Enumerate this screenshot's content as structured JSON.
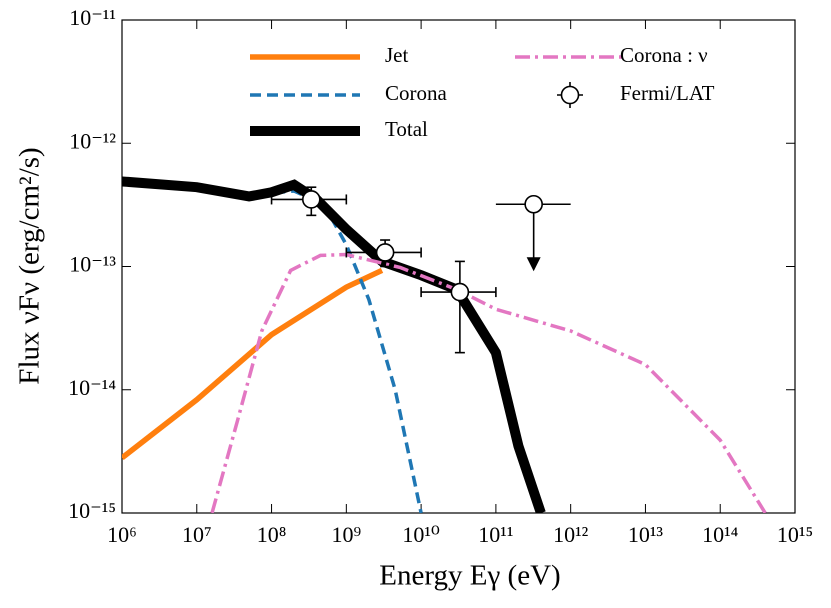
{
  "chart_data": {
    "type": "line",
    "xlabel": "Energy Eγ (eV)",
    "ylabel": "Flux νFν (erg/cm²/s)",
    "xscale": "log",
    "yscale": "log",
    "xlim": [
      1000000,
      1000000000000000
    ],
    "ylim": [
      1e-15,
      1e-11
    ],
    "xticks": [
      {
        "value": 1000000,
        "label": "10⁶"
      },
      {
        "value": 10000000,
        "label": "10⁷"
      },
      {
        "value": 100000000,
        "label": "10⁸"
      },
      {
        "value": 1000000000,
        "label": "10⁹"
      },
      {
        "value": 10000000000,
        "label": "10¹⁰"
      },
      {
        "value": 100000000000,
        "label": "10¹¹"
      },
      {
        "value": 1000000000000,
        "label": "10¹²"
      },
      {
        "value": 10000000000000,
        "label": "10¹³"
      },
      {
        "value": 100000000000000,
        "label": "10¹⁴"
      },
      {
        "value": 1000000000000000,
        "label": "10¹⁵"
      }
    ],
    "yticks": [
      {
        "value": 1e-15,
        "label": "10⁻¹⁵"
      },
      {
        "value": 1e-14,
        "label": "10⁻¹⁴"
      },
      {
        "value": 1e-13,
        "label": "10⁻¹³"
      },
      {
        "value": 1e-12,
        "label": "10⁻¹²"
      },
      {
        "value": 1e-11,
        "label": "10⁻¹¹"
      }
    ],
    "series": [
      {
        "name": "Jet",
        "color": "#ff7f0e",
        "style": "solid",
        "x": [
          1000000,
          10000000,
          100000000,
          1000000000,
          3000000000
        ],
        "values": [
          2.8e-15,
          8.3e-15,
          2.8e-14,
          6.8e-14,
          9.3e-14
        ]
      },
      {
        "name": "Corona",
        "color": "#1f77b4",
        "style": "dashed",
        "x": [
          1000000,
          10000000,
          50000000,
          200000000,
          500000000,
          1000000000,
          2000000000,
          4500000000,
          10000000000
        ],
        "values": [
          4.9e-13,
          4.2e-13,
          3.8e-13,
          4.1e-13,
          3.2e-13,
          1.5e-13,
          5.4e-14,
          1e-14,
          1e-15
        ]
      },
      {
        "name": "Total",
        "color": "#000000",
        "style": "solid",
        "x": [
          1000000,
          10000000,
          50000000,
          100000000,
          200000000,
          400000000,
          1000000000,
          3000000000,
          10000000000,
          30000000000,
          100000000000,
          200000000000,
          400000000000
        ],
        "values": [
          4.9e-13,
          4.4e-13,
          3.7e-13,
          4e-13,
          4.6e-13,
          3.5e-13,
          2e-13,
          1.1e-13,
          8.5e-14,
          6.5e-14,
          2e-14,
          3.5e-15,
          1e-15
        ]
      },
      {
        "name": "Corona : ν",
        "color": "#e377c2",
        "style": "dashdot",
        "x": [
          16000000,
          35000000,
          74000000,
          180000000,
          450000000,
          1000000000,
          5300000000,
          30000000000,
          100000000000,
          1000000000000,
          10000000000000,
          100000000000000,
          400000000000000
        ],
        "values": [
          1e-15,
          5.6e-15,
          3e-14,
          9.3e-14,
          1.23e-13,
          1.25e-13,
          9.8e-14,
          6.5e-14,
          4.5e-14,
          3e-14,
          1.6e-14,
          3.9e-15,
          1e-15
        ]
      }
    ],
    "points": {
      "name": "Fermi/LAT",
      "x": [
        340000000,
        3300000000,
        33000000000
      ],
      "values": [
        3.5e-13,
        1.3e-13,
        6.2e-14
      ],
      "x_low": [
        100000000,
        1000000000,
        10000000000
      ],
      "x_high": [
        1000000000,
        10000000000,
        100000000000
      ],
      "y_low": [
        2.6e-13,
        1e-13,
        2e-14
      ],
      "y_high": [
        4.4e-13,
        1.64e-13,
        1.1e-13
      ]
    },
    "upper_limits": {
      "x": [
        320000000000
      ],
      "values": [
        3.2e-13
      ],
      "x_low": [
        100000000000
      ],
      "x_high": [
        1000000000000
      ]
    }
  }
}
